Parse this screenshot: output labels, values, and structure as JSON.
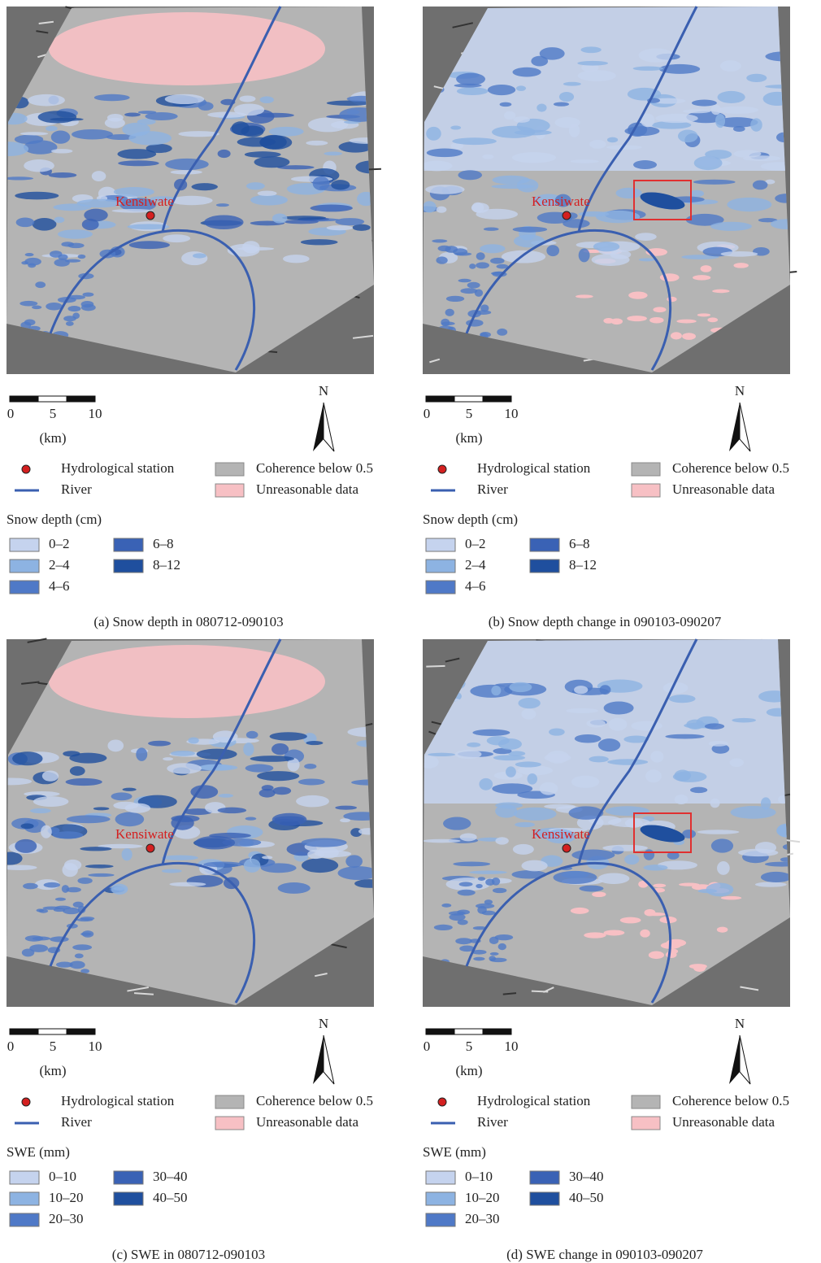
{
  "class_colors": [
    "#c5d3ee",
    "#8db3e2",
    "#4f79c7",
    "#3a62b5",
    "#1f4f9e"
  ],
  "legend_colors": {
    "station": "#d42020",
    "river": "#3a5fb0",
    "coherence": "#b4b4b4",
    "unreasonable": "#f7c0c4",
    "highlight": "#e03030"
  },
  "panels": [
    {
      "map": {
        "station": "Kensiwate",
        "highlight": false
      },
      "scale_bar": {
        "ticks": [
          "0",
          "5",
          "10"
        ],
        "unit": "(km)"
      },
      "north": "N",
      "legend": {
        "station": "Hydrological station",
        "river": "River",
        "coherence": "Coherence below 0.5",
        "unreasonable": "Unreasonable data"
      },
      "class_title": "Snow depth (cm)",
      "classes": [
        "0–2",
        "2–4",
        "4–6",
        "6–8",
        "8–12"
      ],
      "caption": "(a)  Snow depth in 080712-090103"
    },
    {
      "map": {
        "station": "Kensiwate",
        "highlight": true
      },
      "scale_bar": {
        "ticks": [
          "0",
          "5",
          "10"
        ],
        "unit": "(km)"
      },
      "north": "N",
      "legend": {
        "station": "Hydrological station",
        "river": "River",
        "coherence": "Coherence below 0.5",
        "unreasonable": "Unreasonable data"
      },
      "class_title": "Snow depth (cm)",
      "classes": [
        "0–2",
        "2–4",
        "4–6",
        "6–8",
        "8–12"
      ],
      "caption": "(b)  Snow depth change in 090103-090207"
    },
    {
      "map": {
        "station": "Kensiwate",
        "highlight": false
      },
      "scale_bar": {
        "ticks": [
          "0",
          "5",
          "10"
        ],
        "unit": "(km)"
      },
      "north": "N",
      "legend": {
        "station": "Hydrological station",
        "river": "River",
        "coherence": "Coherence below 0.5",
        "unreasonable": "Unreasonable data"
      },
      "class_title": "SWE (mm)",
      "classes": [
        "0–10",
        "10–20",
        "20–30",
        "30–40",
        "40–50"
      ],
      "caption": "(c)  SWE in 080712-090103"
    },
    {
      "map": {
        "station": "Kensiwate",
        "highlight": true
      },
      "scale_bar": {
        "ticks": [
          "0",
          "5",
          "10"
        ],
        "unit": "(km)"
      },
      "north": "N",
      "legend": {
        "station": "Hydrological station",
        "river": "River",
        "coherence": "Coherence below 0.5",
        "unreasonable": "Unreasonable data"
      },
      "class_title": "SWE (mm)",
      "classes": [
        "0–10",
        "10–20",
        "20–30",
        "30–40",
        "40–50"
      ],
      "caption": "(d)  SWE change in 090103-090207"
    }
  ]
}
